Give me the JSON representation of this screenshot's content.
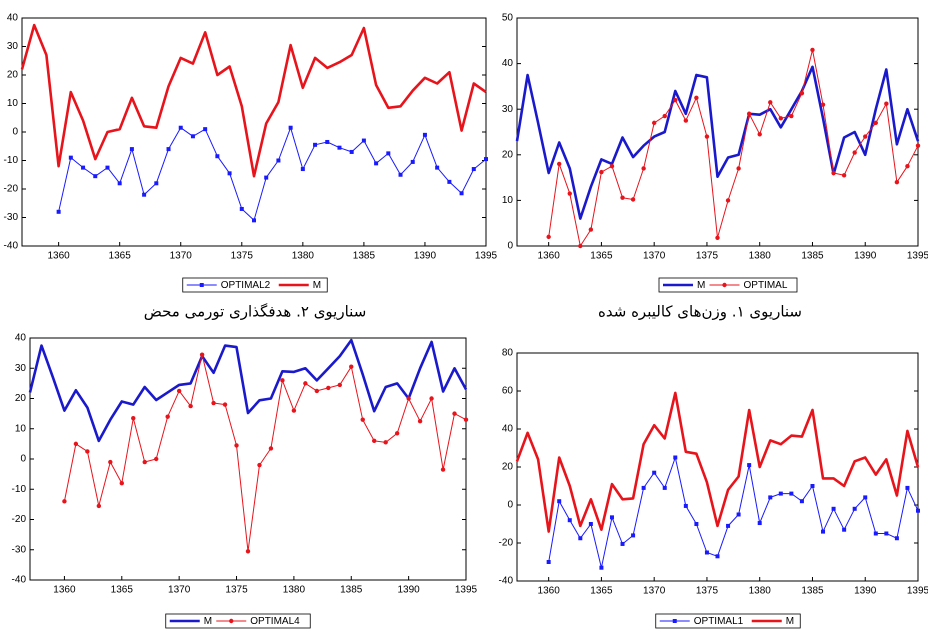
{
  "chart_data": [
    {
      "type": "line",
      "caption": "سناریوی ۲. هدفگذاری تورمی محض",
      "x": [
        1357,
        1358,
        1359,
        1360,
        1361,
        1362,
        1363,
        1364,
        1365,
        1366,
        1367,
        1368,
        1369,
        1370,
        1371,
        1372,
        1373,
        1374,
        1375,
        1376,
        1377,
        1378,
        1379,
        1380,
        1381,
        1382,
        1383,
        1384,
        1385,
        1386,
        1387,
        1388,
        1389,
        1390,
        1391,
        1392,
        1393,
        1394,
        1395
      ],
      "xlim": [
        1357,
        1395
      ],
      "xticks": [
        1360,
        1365,
        1370,
        1375,
        1380,
        1385,
        1390,
        1395
      ],
      "ylim": [
        -40,
        40
      ],
      "yticks": [
        -40,
        -30,
        -20,
        -10,
        0,
        10,
        20,
        30,
        40
      ],
      "series": [
        {
          "name": "OPTIMAL2",
          "color": "#1a1aff",
          "marker": "square",
          "thick": false,
          "values": [
            null,
            null,
            null,
            -28,
            -9,
            -12.5,
            -15.5,
            -12.5,
            -18,
            -6,
            -22,
            -18,
            -6,
            1.5,
            -1.5,
            1,
            -8.5,
            -14.5,
            -27,
            -31,
            -16,
            -10,
            1.5,
            -13,
            -4.5,
            -3.5,
            -5.5,
            -7,
            -3,
            -11,
            -7.5,
            -15,
            -10.5,
            -1,
            -12.5,
            -17.5,
            -21.5,
            -13,
            -9.5
          ]
        },
        {
          "name": "M",
          "color": "#e8141c",
          "marker": "none",
          "thick": true,
          "values": [
            22,
            37.5,
            27,
            -12,
            14,
            4,
            -9.5,
            0,
            1,
            12,
            2,
            1.5,
            16,
            26,
            24,
            35,
            20,
            23,
            9,
            -15.5,
            3,
            10.5,
            30.5,
            15.5,
            26,
            22.5,
            24.5,
            27,
            36.5,
            16.5,
            8.5,
            9,
            14.5,
            19,
            17,
            21,
            0.5,
            17,
            14
          ]
        }
      ]
    },
    {
      "type": "line",
      "caption": "سناریوی ۱. وزن‌های کالیبره شده",
      "x": [
        1357,
        1358,
        1359,
        1360,
        1361,
        1362,
        1363,
        1364,
        1365,
        1366,
        1367,
        1368,
        1369,
        1370,
        1371,
        1372,
        1373,
        1374,
        1375,
        1376,
        1377,
        1378,
        1379,
        1380,
        1381,
        1382,
        1383,
        1384,
        1385,
        1386,
        1387,
        1388,
        1389,
        1390,
        1391,
        1392,
        1393,
        1394,
        1395
      ],
      "xlim": [
        1357,
        1395
      ],
      "xticks": [
        1360,
        1365,
        1370,
        1375,
        1380,
        1385,
        1390,
        1395
      ],
      "ylim": [
        0,
        50
      ],
      "yticks": [
        0,
        10,
        20,
        30,
        40,
        50
      ],
      "series": [
        {
          "name": "M",
          "color": "#1a1acc",
          "marker": "none",
          "thick": true,
          "values": [
            23,
            37.5,
            27,
            16,
            22.7,
            17,
            6,
            13,
            19,
            18,
            23.8,
            19.5,
            22,
            24,
            25,
            34,
            29,
            37.5,
            37,
            15.2,
            19.4,
            20,
            29,
            28.8,
            30,
            26,
            30,
            34,
            39.3,
            28,
            15.8,
            23.8,
            25,
            20,
            30,
            38.7,
            22.3,
            30,
            23
          ]
        },
        {
          "name": "OPTIMAL",
          "color": "#e8141c",
          "marker": "circle",
          "thick": false,
          "values": [
            null,
            null,
            null,
            2,
            18,
            11.5,
            0,
            3.6,
            16.2,
            17.5,
            10.6,
            10.2,
            17,
            27,
            28.5,
            32,
            27.5,
            32.5,
            24,
            1.8,
            10,
            17,
            29,
            24.5,
            31.5,
            28,
            28.5,
            33.5,
            43,
            31,
            16,
            15.5,
            20.5,
            24,
            27,
            31.2,
            14,
            17.5,
            22
          ]
        }
      ]
    },
    {
      "type": "line",
      "x": [
        1357,
        1358,
        1359,
        1360,
        1361,
        1362,
        1363,
        1364,
        1365,
        1366,
        1367,
        1368,
        1369,
        1370,
        1371,
        1372,
        1373,
        1374,
        1375,
        1376,
        1377,
        1378,
        1379,
        1380,
        1381,
        1382,
        1383,
        1384,
        1385,
        1386,
        1387,
        1388,
        1389,
        1390,
        1391,
        1392,
        1393,
        1394,
        1395
      ],
      "xlim": [
        1357,
        1395
      ],
      "xticks": [
        1360,
        1365,
        1370,
        1375,
        1380,
        1385,
        1390,
        1395
      ],
      "ylim": [
        -40,
        40
      ],
      "yticks": [
        -40,
        -30,
        -20,
        -10,
        0,
        10,
        20,
        30,
        40
      ],
      "series": [
        {
          "name": "M",
          "color": "#1a1acc",
          "marker": "none",
          "thick": true,
          "values": [
            22,
            37.5,
            27,
            16,
            22.7,
            17,
            6,
            13,
            19,
            18,
            23.8,
            19.5,
            22,
            24.5,
            25,
            34,
            28.5,
            37.5,
            37,
            15.2,
            19.4,
            20,
            29,
            28.8,
            30,
            26,
            30,
            34,
            39.3,
            28,
            15.8,
            23.8,
            25,
            20,
            30,
            38.7,
            22.3,
            30,
            23
          ]
        },
        {
          "name": "OPTIMAL4",
          "color": "#e8141c",
          "marker": "circle",
          "thick": false,
          "values": [
            null,
            null,
            null,
            -14,
            5,
            2.5,
            -15.5,
            -1,
            -8,
            13.5,
            -1,
            0,
            14,
            22.5,
            17.5,
            34.5,
            18.5,
            18,
            4.5,
            -30.5,
            -2,
            3.5,
            26,
            16,
            25,
            22.5,
            23.5,
            24.5,
            30.5,
            13,
            6,
            5.5,
            8.5,
            20,
            12.5,
            20,
            -3.5,
            15,
            13
          ]
        }
      ]
    },
    {
      "type": "line",
      "x": [
        1357,
        1358,
        1359,
        1360,
        1361,
        1362,
        1363,
        1364,
        1365,
        1366,
        1367,
        1368,
        1369,
        1370,
        1371,
        1372,
        1373,
        1374,
        1375,
        1376,
        1377,
        1378,
        1379,
        1380,
        1381,
        1382,
        1383,
        1384,
        1385,
        1386,
        1387,
        1388,
        1389,
        1390,
        1391,
        1392,
        1393,
        1394,
        1395
      ],
      "xlim": [
        1357,
        1395
      ],
      "xticks": [
        1360,
        1365,
        1370,
        1375,
        1380,
        1385,
        1390,
        1395
      ],
      "ylim": [
        -40,
        80
      ],
      "yticks": [
        -40,
        -20,
        0,
        20,
        40,
        60,
        80
      ],
      "series": [
        {
          "name": "OPTIMAL1",
          "color": "#1a1aff",
          "marker": "square",
          "thick": false,
          "values": [
            null,
            null,
            null,
            -30,
            2,
            -8,
            -17.5,
            -10,
            -33,
            -6.5,
            -20.5,
            -16,
            9,
            17,
            9,
            25,
            -0.5,
            -10,
            -25,
            -27,
            -11,
            -5,
            21,
            -9.5,
            4,
            6,
            6,
            2,
            10,
            -14,
            -2,
            -13,
            -2,
            4,
            -15,
            -15,
            -17.5,
            9,
            -3
          ]
        },
        {
          "name": "M",
          "color": "#e8141c",
          "marker": "none",
          "thick": true,
          "values": [
            23,
            38,
            24,
            -14,
            25,
            10,
            -11,
            3,
            -13,
            11,
            3,
            3.5,
            32,
            42,
            35,
            59,
            28,
            27,
            12,
            -11,
            8,
            15,
            50,
            20,
            34,
            32,
            36.5,
            36,
            50,
            14,
            14,
            10,
            23,
            25,
            16,
            24,
            5,
            39,
            20
          ]
        }
      ]
    }
  ]
}
